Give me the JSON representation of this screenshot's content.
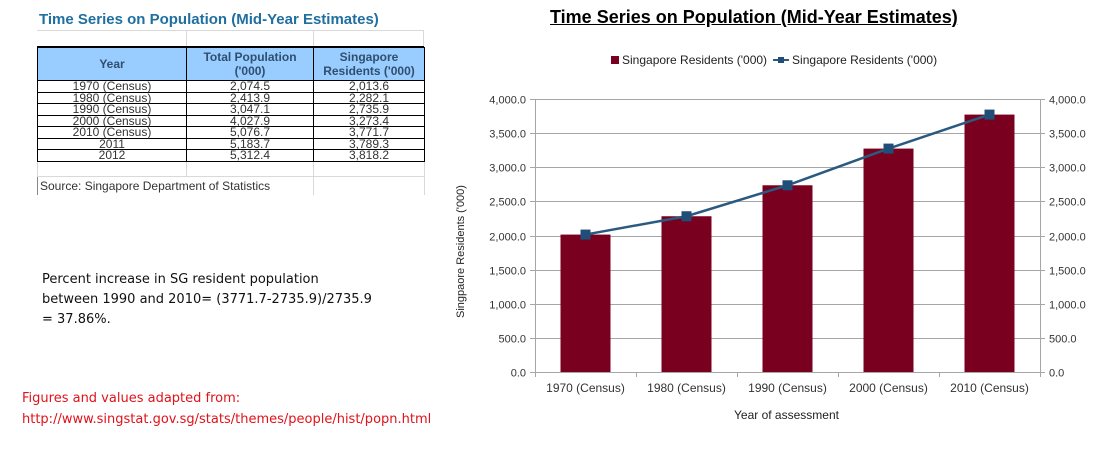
{
  "table": {
    "title": "Time Series on Population (Mid-Year Estimates)",
    "headers": [
      "Year",
      "Total Population ('000)",
      "Singapore Residents ('000)"
    ],
    "rows": [
      [
        "1970 (Census)",
        "2,074.5",
        "2,013.6"
      ],
      [
        "1980 (Census)",
        "2,413.9",
        "2,282.1"
      ],
      [
        "1990 (Census)",
        "3,047.1",
        "2,735.9"
      ],
      [
        "2000 (Census)",
        "4,027.9",
        "3,273.4"
      ],
      [
        "2010 (Census)",
        "5,076.7",
        "3,771.7"
      ],
      [
        "2011",
        "5,183.7",
        "3,789.3"
      ],
      [
        "2012",
        "5,312.4",
        "3,818.2"
      ]
    ],
    "source": "Source: Singapore Department of Statistics"
  },
  "note": {
    "line1": "Percent  increase in SG resident population",
    "line2": "between 1990 and 2010= (3771.7-2735.9)/2735.9",
    "line3": "= 37.86%."
  },
  "credit": {
    "line1": "Figures and values adapted from:",
    "line2": "http://www.singstat.gov.sg/stats/themes/people/hist/popn.html"
  },
  "colors": {
    "bar": "#7a0020",
    "line": "#2a5a80",
    "marker": "#1f4e79",
    "table_header": "#99ccff",
    "table_title": "#1f6fa0",
    "credit_text": "#e0121a"
  },
  "chart_data": {
    "type": "bar",
    "title": "Time Series on Population (Mid-Year Estimates)",
    "categories": [
      "1970 (Census)",
      "1980 (Census)",
      "1990 (Census)",
      "2000 (Census)",
      "2010 (Census)"
    ],
    "series": [
      {
        "name": "Singapore Residents ('000)",
        "kind": "bar",
        "values": [
          2013.6,
          2282.1,
          2735.9,
          3273.4,
          3771.7
        ]
      },
      {
        "name": "Singapore Residents ('000)",
        "kind": "line",
        "values": [
          2013.6,
          2282.1,
          2735.9,
          3273.4,
          3771.7
        ]
      }
    ],
    "legend": [
      "Singapore Residents ('000)",
      "Singapore Residents ('000)"
    ],
    "legend_position": "top",
    "xlabel": "Year of assessment",
    "ylabel": "Singpaore Residents ('000)",
    "ylim": [
      0,
      4000
    ],
    "yticks": [
      "0.0",
      "500.0",
      "1,000.0",
      "1,500.0",
      "2,000.0",
      "2,500.0",
      "3,000.0",
      "3,500.0",
      "4,000.0"
    ],
    "secondary_yticks": [
      "0.0",
      "500.0",
      "1,000.0",
      "1,500.0",
      "2,000.0",
      "2,500.0",
      "3,000.0",
      "3,500.0",
      "4,000.0"
    ],
    "grid": true
  }
}
